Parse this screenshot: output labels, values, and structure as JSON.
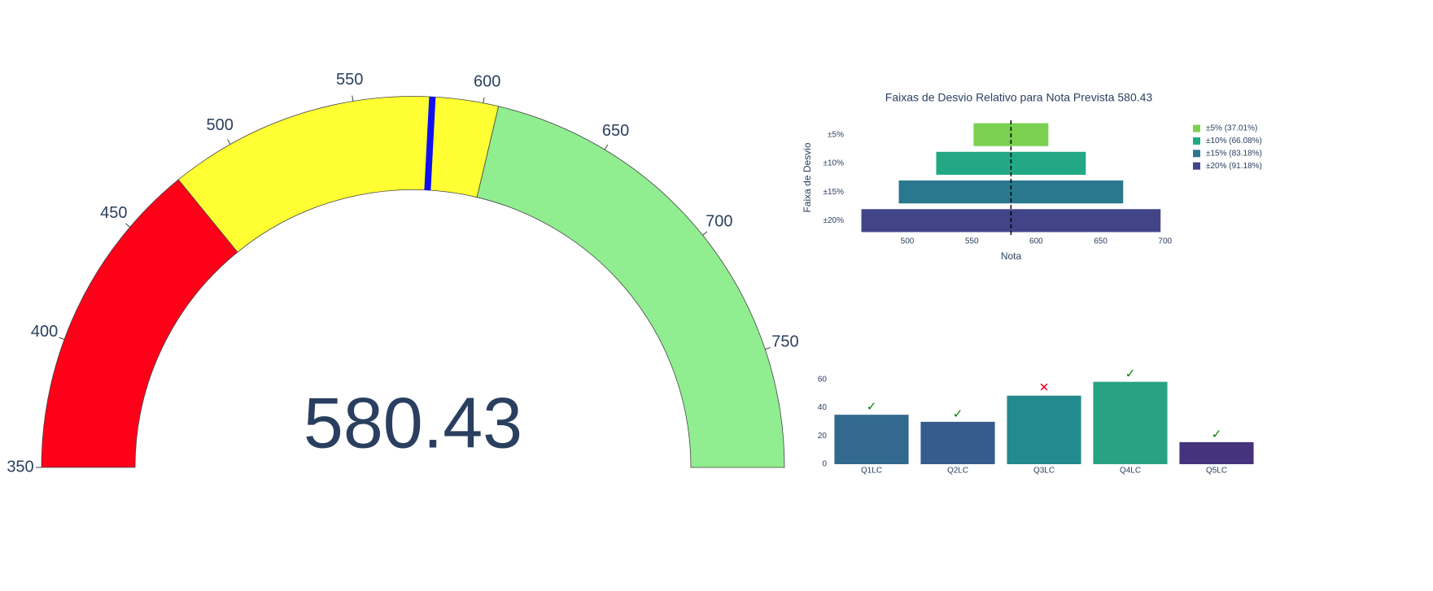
{
  "chart_data": [
    {
      "type": "gauge",
      "value": 580.43,
      "range": [
        350,
        796
      ],
      "ticks": [
        350,
        400,
        450,
        500,
        550,
        600,
        650,
        700,
        750
      ],
      "steps": [
        {
          "range": [
            350,
            476
          ],
          "color": "#ff0019"
        },
        {
          "range": [
            476,
            606
          ],
          "color": "#ffff33"
        },
        {
          "range": [
            606,
            796
          ],
          "color": "#90ee90"
        }
      ],
      "needle_color": "#1010f0"
    },
    {
      "type": "rangebar",
      "title": "Faixas de Desvio Relativo para Nota Prevista 580.43",
      "xlabel": "Nota",
      "ylabel": "Faixa de Desvio",
      "categories": [
        "±5%",
        "±10%",
        "±15%",
        "±20%"
      ],
      "low": [
        551.41,
        522.39,
        493.37,
        464.34
      ],
      "high": [
        609.45,
        638.47,
        667.49,
        696.52
      ],
      "colors": [
        "#7ad151",
        "#22a884",
        "#2a788e",
        "#414487"
      ],
      "legend": [
        "±5% (37.01%)",
        "±10% (66.08%)",
        "±15% (83.18%)",
        "±20% (91.18%)"
      ],
      "reference_line": 580.43,
      "xlim": [
        464,
        697
      ],
      "xticks": [
        500,
        550,
        600,
        650,
        700
      ]
    },
    {
      "type": "bar",
      "categories": [
        "Q1LC",
        "Q2LC",
        "Q3LC",
        "Q4LC",
        "Q5LC"
      ],
      "values": [
        35,
        30,
        48.5,
        58.3,
        15.6
      ],
      "colors": [
        "#33698f",
        "#365c8d",
        "#238b8d",
        "#27a383",
        "#46337e"
      ],
      "status_marks": [
        "✓",
        "✓",
        "✕",
        "✓",
        "✓"
      ],
      "status_colors": [
        "#008000",
        "#008000",
        "#e8001c",
        "#008000",
        "#008000"
      ],
      "ylim": [
        0,
        61
      ],
      "yticks": [
        0,
        20,
        40,
        60
      ]
    }
  ]
}
